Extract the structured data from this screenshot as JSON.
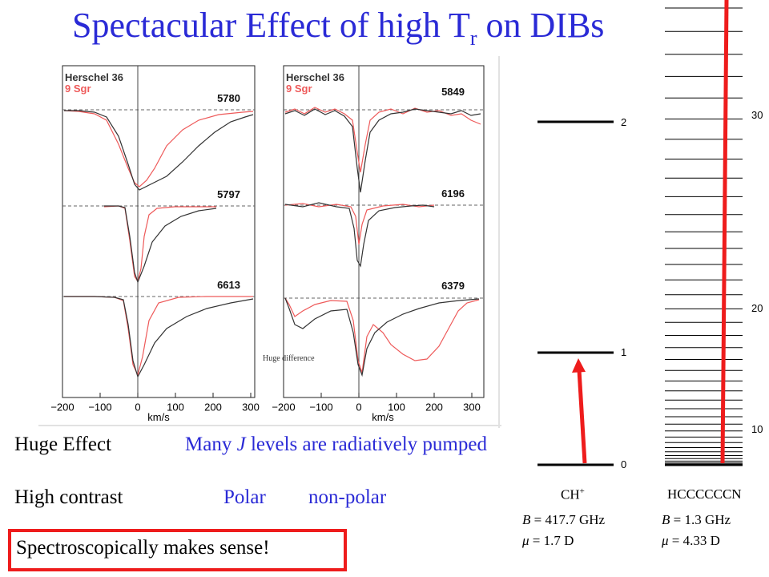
{
  "title": {
    "main": "Spectacular Effect of high T",
    "sub": "r",
    "tail": " on DIBs"
  },
  "spectra": {
    "legend_star1": "Herschel 36",
    "legend_star2": "9 Sgr",
    "colors": {
      "star1": "#333333",
      "star2": "#ee5a5a"
    },
    "left_panel": {
      "bands": [
        "5780",
        "5797",
        "6613"
      ]
    },
    "right_panel": {
      "bands": [
        "5849",
        "6196",
        "6379"
      ]
    },
    "x_ticks": [
      "−200",
      "−100",
      "0",
      "100",
      "200",
      "300"
    ],
    "x_label": "km/s",
    "annotation": "Huge difference"
  },
  "statements": {
    "huge_effect": "Huge Effect",
    "pumped_pre": "Many ",
    "pumped_j": "J",
    "pumped_post": " levels are radiatively pumped",
    "high_contrast": "High contrast",
    "polar": "Polar",
    "non_polar": "non-polar",
    "sense": "Spectroscopically makes sense!"
  },
  "ch_plus": {
    "name": "CH",
    "charge": "+",
    "levels": [
      "0",
      "1",
      "2"
    ],
    "B_sym": "B",
    "B_val": " = 417.7 GHz",
    "mu_sym": "μ",
    "mu_val": " = 1.7 D"
  },
  "hc7n": {
    "name": "HCCCCCCN",
    "level_labels": [
      "10",
      "20",
      "30"
    ],
    "B_sym": "B",
    "B_val": " = 1.3 GHz",
    "mu_sym": "μ",
    "mu_val": " = 4.33 D"
  },
  "arrow_color": "#ee1c1c"
}
